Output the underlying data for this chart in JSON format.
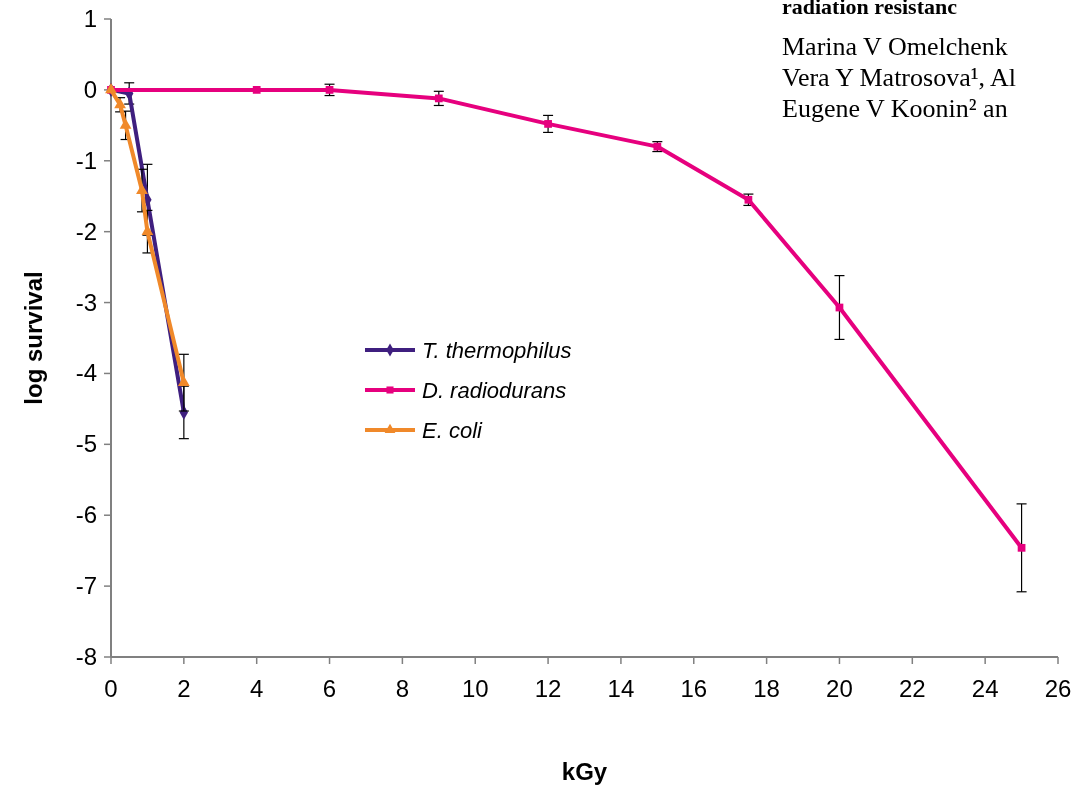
{
  "chart_data": {
    "type": "line",
    "xlabel": "kGy",
    "ylabel": "log survival",
    "xlim": [
      0,
      26
    ],
    "xticks": [
      0,
      2,
      4,
      6,
      8,
      10,
      12,
      14,
      16,
      18,
      20,
      22,
      24,
      26
    ],
    "ylim": [
      -8,
      1
    ],
    "yticks": [
      -8,
      -7,
      -6,
      -5,
      -4,
      -3,
      -2,
      -1,
      0,
      1
    ],
    "grid": false,
    "legend": "left",
    "series": [
      {
        "name": "T. thermophilus",
        "color": "#3f1f7f",
        "marker": "diamond",
        "x": [
          0,
          0.5,
          1,
          2
        ],
        "values": [
          0,
          -0.05,
          -1.55,
          -4.55
        ],
        "errors": [
          null,
          0.15,
          0.5,
          0.37
        ]
      },
      {
        "name": "D. radiodurans",
        "color": "#e6007e",
        "marker": "square",
        "x": [
          0,
          4,
          6,
          9,
          12,
          15,
          17.5,
          20,
          25
        ],
        "values": [
          0,
          0,
          0,
          -0.12,
          -0.48,
          -0.8,
          -1.55,
          -3.07,
          -6.46
        ],
        "errors": [
          null,
          null,
          0.08,
          0.1,
          0.12,
          0.07,
          0.08,
          0.45,
          0.62
        ]
      },
      {
        "name": "E. coli",
        "color": "#f0892a",
        "marker": "triangle",
        "x": [
          0,
          0.25,
          0.4,
          0.85,
          1,
          2
        ],
        "values": [
          0,
          -0.21,
          -0.5,
          -1.42,
          -2.0,
          -4.13
        ],
        "errors": [
          null,
          0.1,
          0.2,
          0.3,
          0.3,
          0.4
        ]
      }
    ],
    "annotations": [
      "radiation resistanc",
      "Marina V Omelchenk",
      "Vera Y Matrosova¹, Al",
      "Eugene V Koonin² an"
    ]
  }
}
